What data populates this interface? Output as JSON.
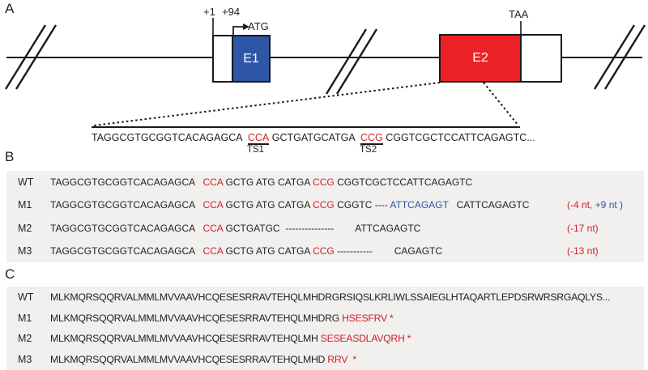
{
  "colors": {
    "ink": "#231f20",
    "accent_red": "#d12229",
    "accent_blue": "#2e54a4",
    "exon1_fill": "#2d56a7",
    "exon2_fill": "#ec2127",
    "band_bg": "#f1f0ee"
  },
  "panelA": {
    "label": "A",
    "pos_plus1": "+1",
    "pos_plus94": "+94",
    "atg": "ATG",
    "taa": "TAA",
    "exon1": "E1",
    "exon2": "E2",
    "zoom_sequence": [
      {
        "t": "TAGGCGTGCGGTCACAGAGCA  ",
        "c": "k"
      },
      {
        "t": "CCA",
        "c": "r",
        "ul": true,
        "ts": "TS1"
      },
      {
        "t": " GCTGATGCATGA  ",
        "c": "k"
      },
      {
        "t": "CCG",
        "c": "r",
        "ul": true,
        "ts": "TS2"
      },
      {
        "t": " CGGTCGCTCCATTCAGAGTC...",
        "c": "k"
      }
    ]
  },
  "panelB": {
    "label": "B",
    "rows": [
      {
        "label": "WT",
        "segments": [
          {
            "t": "TAGGCGTGCGGTCACAGAGCA   ",
            "c": "k"
          },
          {
            "t": "CCA",
            "c": "r"
          },
          {
            "t": " GCTG ATG CATGA ",
            "c": "k"
          },
          {
            "t": "CCG",
            "c": "r"
          },
          {
            "t": " CGGTCGCTCCATTCAGAGTC",
            "c": "k"
          }
        ]
      },
      {
        "label": "M1",
        "segments": [
          {
            "t": "TAGGCGTGCGGTCACAGAGCA   ",
            "c": "k"
          },
          {
            "t": "CCA",
            "c": "r"
          },
          {
            "t": " GCTG ATG CATGA ",
            "c": "k"
          },
          {
            "t": "CCG",
            "c": "r"
          },
          {
            "t": " CGGTC ---- ",
            "c": "k"
          },
          {
            "t": "ATTCAGAGT",
            "c": "b"
          },
          {
            "t": "   CATTCAGAGTC",
            "c": "k"
          }
        ],
        "note": [
          {
            "t": "(-4 nt,",
            "c": "r"
          },
          {
            "t": " +9 nt )",
            "c": "b"
          }
        ]
      },
      {
        "label": "M2",
        "segments": [
          {
            "t": "TAGGCGTGCGGTCACAGAGCA   ",
            "c": "k"
          },
          {
            "t": "CCA",
            "c": "r"
          },
          {
            "t": " GCTGATGC  ---------------        ATTCAGAGTC",
            "c": "k"
          }
        ],
        "note": [
          {
            "t": "(-17 nt)",
            "c": "r"
          }
        ]
      },
      {
        "label": "M3",
        "segments": [
          {
            "t": "TAGGCGTGCGGTCACAGAGCA   ",
            "c": "k"
          },
          {
            "t": "CCA",
            "c": "r"
          },
          {
            "t": " GCTG ATG CATGA ",
            "c": "k"
          },
          {
            "t": "CCG",
            "c": "r"
          },
          {
            "t": " -----------        CAGAGTC",
            "c": "k"
          }
        ],
        "note": [
          {
            "t": "(-13 nt)",
            "c": "r"
          }
        ]
      }
    ]
  },
  "panelC": {
    "label": "C",
    "rows": [
      {
        "label": "WT",
        "segments": [
          {
            "t": "MLKMQRSQQRVALMMLMVVAAVHCQESESRRAVTEHQLMHDRGRSIQSLKRLIWLSSAIEGLHTAQARTLEPDSRWRSRGAQLYS...",
            "c": "k"
          }
        ]
      },
      {
        "label": "M1",
        "segments": [
          {
            "t": "MLKMQRSQQRVALMMLMVVAAVHCQESESRRAVTEHQLMHDRG",
            "c": "k"
          },
          {
            "t": " HSESFRV *",
            "c": "r"
          }
        ]
      },
      {
        "label": "M2",
        "segments": [
          {
            "t": "MLKMQRSQQRVALMMLMVVAAVHCQESESRRAVTEHQLMH",
            "c": "k"
          },
          {
            "t": " SESEASDLAVQRH *",
            "c": "r"
          }
        ]
      },
      {
        "label": "M3",
        "segments": [
          {
            "t": "MLKMQRSQQRVALMMLMVVAAVHCQESESRRAVTEHQLMHD",
            "c": "k"
          },
          {
            "t": " RRV  *",
            "c": "r"
          }
        ]
      }
    ]
  }
}
